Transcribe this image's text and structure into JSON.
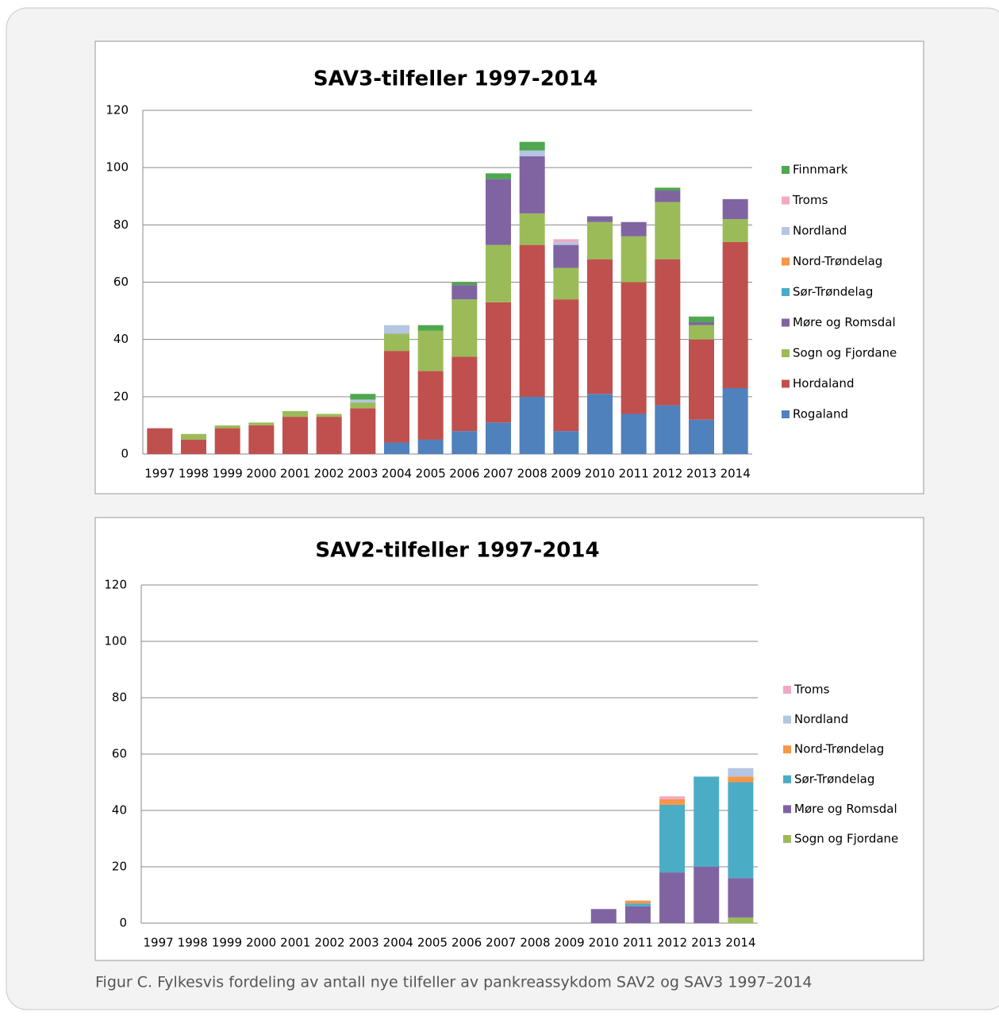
{
  "chart_data": [
    {
      "type": "bar",
      "stacked": true,
      "title": "SAV3-tilfeller 1997-2014",
      "categories": [
        "1997",
        "1998",
        "1999",
        "2000",
        "2001",
        "2002",
        "2003",
        "2004",
        "2005",
        "2006",
        "2007",
        "2008",
        "2009",
        "2010",
        "2011",
        "2012",
        "2013",
        "2014"
      ],
      "ylim": [
        0,
        120
      ],
      "yticks": [
        0,
        20,
        40,
        60,
        80,
        100,
        120
      ],
      "grid": true,
      "series": [
        {
          "name": "Rogaland",
          "color": "#4f81bd",
          "values": [
            0,
            0,
            0,
            0,
            0,
            0,
            0,
            4,
            5,
            8,
            11,
            20,
            8,
            21,
            14,
            17,
            12,
            23
          ]
        },
        {
          "name": "Hordaland",
          "color": "#c0504d",
          "values": [
            9,
            5,
            9,
            10,
            13,
            13,
            16,
            32,
            24,
            26,
            42,
            53,
            46,
            47,
            46,
            51,
            28,
            51
          ]
        },
        {
          "name": "Sogn og Fjordane",
          "color": "#9bbb59",
          "values": [
            0,
            2,
            1,
            1,
            2,
            1,
            2,
            6,
            14,
            20,
            20,
            11,
            11,
            13,
            16,
            20,
            5,
            8
          ]
        },
        {
          "name": "Møre og Romsdal",
          "color": "#8064a2",
          "values": [
            0,
            0,
            0,
            0,
            0,
            0,
            0,
            0,
            0,
            5,
            23,
            20,
            8,
            2,
            5,
            4,
            1,
            7
          ]
        },
        {
          "name": "Sør-Trøndelag",
          "color": "#4bacc6",
          "values": [
            0,
            0,
            0,
            0,
            0,
            0,
            0,
            0,
            0,
            0,
            0,
            0,
            0,
            0,
            0,
            0,
            0,
            0
          ]
        },
        {
          "name": "Nord-Trøndelag",
          "color": "#f79646",
          "values": [
            0,
            0,
            0,
            0,
            0,
            0,
            0,
            0,
            0,
            0,
            0,
            0,
            0,
            0,
            0,
            0,
            0,
            0
          ]
        },
        {
          "name": "Nordland",
          "color": "#b4c6e2",
          "values": [
            0,
            0,
            0,
            0,
            0,
            0,
            1,
            3,
            0,
            0,
            0,
            2,
            1,
            0,
            0,
            0,
            0,
            0
          ]
        },
        {
          "name": "Troms",
          "color": "#f2a8c4",
          "values": [
            0,
            0,
            0,
            0,
            0,
            0,
            0,
            0,
            0,
            0,
            0,
            0,
            1,
            0,
            0,
            0,
            0,
            0
          ]
        },
        {
          "name": "Finnmark",
          "color": "#4fa84f",
          "values": [
            0,
            0,
            0,
            0,
            0,
            0,
            2,
            0,
            2,
            1,
            2,
            3,
            0,
            0,
            0,
            1,
            2,
            0
          ]
        }
      ]
    },
    {
      "type": "bar",
      "stacked": true,
      "title": "SAV2-tilfeller 1997-2014",
      "categories": [
        "1997",
        "1998",
        "1999",
        "2000",
        "2001",
        "2002",
        "2003",
        "2004",
        "2005",
        "2006",
        "2007",
        "2008",
        "2009",
        "2010",
        "2011",
        "2012",
        "2013",
        "2014"
      ],
      "ylim": [
        0,
        120
      ],
      "yticks": [
        0,
        20,
        40,
        60,
        80,
        100,
        120
      ],
      "grid": true,
      "series": [
        {
          "name": "Sogn og Fjordane",
          "color": "#9bbb59",
          "values": [
            0,
            0,
            0,
            0,
            0,
            0,
            0,
            0,
            0,
            0,
            0,
            0,
            0,
            0,
            0,
            0,
            0,
            2
          ]
        },
        {
          "name": "Møre og Romsdal",
          "color": "#8064a2",
          "values": [
            0,
            0,
            0,
            0,
            0,
            0,
            0,
            0,
            0,
            0,
            0,
            0,
            0,
            5,
            6,
            18,
            20,
            14
          ]
        },
        {
          "name": "Sør-Trøndelag",
          "color": "#4bacc6",
          "values": [
            0,
            0,
            0,
            0,
            0,
            0,
            0,
            0,
            0,
            0,
            0,
            0,
            0,
            0,
            1,
            24,
            32,
            34
          ]
        },
        {
          "name": "Nord-Trøndelag",
          "color": "#f79646",
          "values": [
            0,
            0,
            0,
            0,
            0,
            0,
            0,
            0,
            0,
            0,
            0,
            0,
            0,
            0,
            1,
            2,
            0,
            2
          ]
        },
        {
          "name": "Nordland",
          "color": "#b4c6e2",
          "values": [
            0,
            0,
            0,
            0,
            0,
            0,
            0,
            0,
            0,
            0,
            0,
            0,
            0,
            0,
            0,
            0,
            0,
            3
          ]
        },
        {
          "name": "Troms",
          "color": "#f2a8c4",
          "values": [
            0,
            0,
            0,
            0,
            0,
            0,
            0,
            0,
            0,
            0,
            0,
            0,
            0,
            0,
            0,
            1,
            0,
            0
          ]
        }
      ]
    }
  ],
  "caption": "Figur C. Fylkesvis fordeling av antall nye tilfeller av pankreassykdom SAV2 og SAV3 1997–2014"
}
